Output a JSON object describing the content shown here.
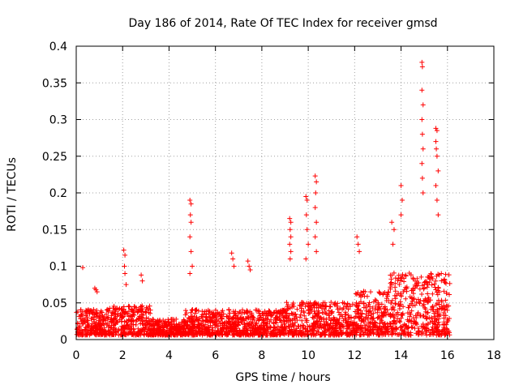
{
  "chart_data": {
    "type": "scatter",
    "title": "Day 186 of 2014, Rate Of TEC Index for receiver gmsd",
    "xlabel": "GPS time / hours",
    "ylabel": "ROTI / TECUs",
    "xlim": [
      0,
      18
    ],
    "ylim": [
      0,
      0.4
    ],
    "x_ticks": [
      0,
      2,
      4,
      6,
      8,
      10,
      12,
      14,
      16,
      18
    ],
    "x_tick_labels": [
      "0",
      "2",
      "4",
      "6",
      "8",
      "10",
      "12",
      "14",
      "16",
      "18"
    ],
    "y_ticks": [
      0,
      0.05,
      0.1,
      0.15,
      0.2,
      0.25,
      0.3,
      0.35,
      0.4
    ],
    "y_tick_labels": [
      "0",
      "0.05",
      "0.1",
      "0.15",
      "0.2",
      "0.25",
      "0.3",
      "0.35",
      "0.4"
    ],
    "grid": true,
    "marker": "+",
    "marker_color": "#ff0000",
    "data_range_hours": [
      0,
      16.1
    ],
    "baseline_level": 0.02,
    "series": [
      {
        "name": "ROTI",
        "points": [
          [
            0.28,
            0.098
          ],
          [
            0.8,
            0.07
          ],
          [
            0.85,
            0.068
          ],
          [
            0.9,
            0.065
          ],
          [
            2.05,
            0.122
          ],
          [
            2.1,
            0.115
          ],
          [
            2.08,
            0.1
          ],
          [
            2.1,
            0.09
          ],
          [
            2.15,
            0.075
          ],
          [
            2.8,
            0.088
          ],
          [
            2.85,
            0.08
          ],
          [
            4.9,
            0.19
          ],
          [
            4.95,
            0.185
          ],
          [
            4.92,
            0.17
          ],
          [
            4.95,
            0.16
          ],
          [
            4.9,
            0.14
          ],
          [
            4.95,
            0.12
          ],
          [
            5.0,
            0.1
          ],
          [
            4.9,
            0.09
          ],
          [
            6.7,
            0.118
          ],
          [
            6.75,
            0.11
          ],
          [
            6.8,
            0.1
          ],
          [
            7.4,
            0.107
          ],
          [
            7.45,
            0.1
          ],
          [
            7.5,
            0.095
          ],
          [
            9.2,
            0.165
          ],
          [
            9.25,
            0.16
          ],
          [
            9.22,
            0.15
          ],
          [
            9.25,
            0.14
          ],
          [
            9.2,
            0.13
          ],
          [
            9.25,
            0.12
          ],
          [
            9.22,
            0.11
          ],
          [
            9.9,
            0.195
          ],
          [
            9.95,
            0.19
          ],
          [
            9.92,
            0.17
          ],
          [
            9.95,
            0.15
          ],
          [
            10.0,
            0.13
          ],
          [
            9.9,
            0.11
          ],
          [
            10.3,
            0.223
          ],
          [
            10.35,
            0.215
          ],
          [
            10.32,
            0.2
          ],
          [
            10.3,
            0.18
          ],
          [
            10.35,
            0.16
          ],
          [
            10.3,
            0.14
          ],
          [
            10.35,
            0.12
          ],
          [
            12.1,
            0.14
          ],
          [
            12.15,
            0.13
          ],
          [
            12.2,
            0.12
          ],
          [
            13.6,
            0.16
          ],
          [
            13.7,
            0.15
          ],
          [
            13.65,
            0.13
          ],
          [
            14.0,
            0.21
          ],
          [
            14.05,
            0.19
          ],
          [
            14.0,
            0.17
          ],
          [
            14.9,
            0.378
          ],
          [
            14.92,
            0.372
          ],
          [
            14.9,
            0.34
          ],
          [
            14.95,
            0.32
          ],
          [
            14.9,
            0.3
          ],
          [
            14.92,
            0.28
          ],
          [
            14.95,
            0.26
          ],
          [
            14.9,
            0.24
          ],
          [
            14.92,
            0.22
          ],
          [
            14.95,
            0.2
          ],
          [
            15.5,
            0.288
          ],
          [
            15.55,
            0.285
          ],
          [
            15.5,
            0.27
          ],
          [
            15.52,
            0.26
          ],
          [
            15.55,
            0.25
          ],
          [
            15.6,
            0.23
          ],
          [
            15.5,
            0.21
          ],
          [
            15.55,
            0.19
          ],
          [
            15.6,
            0.17
          ]
        ]
      }
    ]
  }
}
